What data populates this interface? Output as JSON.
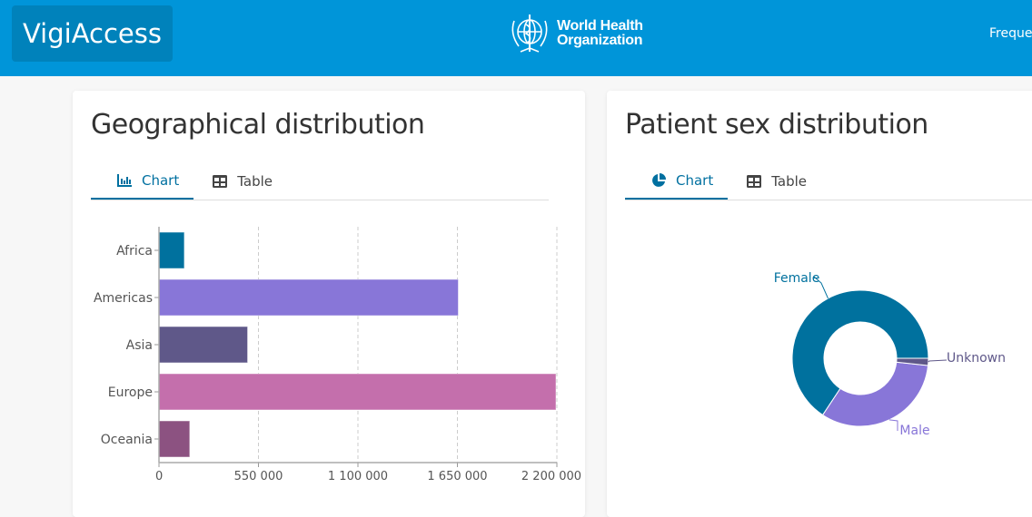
{
  "header": {
    "brand": "VigiAccess",
    "org_line1": "World Health",
    "org_line2": "Organization",
    "nav_item": "Freque"
  },
  "colors": {
    "header_bg": "#0095d9",
    "brand_bg": "#0082bb",
    "accent": "#0070a0"
  },
  "geo": {
    "title": "Geographical distribution",
    "tabs": [
      {
        "label": "Chart",
        "icon": "bar-chart-icon",
        "active": true
      },
      {
        "label": "Table",
        "icon": "table-icon",
        "active": false
      }
    ]
  },
  "sex": {
    "title": "Patient sex distribution",
    "tabs": [
      {
        "label": "Chart",
        "icon": "pie-chart-icon",
        "active": true
      },
      {
        "label": "Table",
        "icon": "table-icon",
        "active": false
      }
    ]
  },
  "chart_data": [
    {
      "type": "bar",
      "orientation": "horizontal",
      "categories": [
        "Africa",
        "Americas",
        "Asia",
        "Europe",
        "Oceania"
      ],
      "values": [
        140000,
        1655000,
        490000,
        2195000,
        170000
      ],
      "colors": [
        "#00719e",
        "#8876d8",
        "#5f5889",
        "#c46fac",
        "#8c5281"
      ],
      "xlim": [
        0,
        2200000
      ],
      "xticks": [
        "0",
        "550 000",
        "1 100 000",
        "1 650 000",
        "2 200 000"
      ],
      "xtick_values": [
        0,
        550000,
        1100000,
        1650000,
        2200000
      ],
      "grid": true
    },
    {
      "type": "pie",
      "donut": true,
      "labels": [
        "Female",
        "Male",
        "Unknown"
      ],
      "values": [
        65.7,
        32.6,
        1.7
      ],
      "colors": [
        "#00719e",
        "#8876d8",
        "#5f5889"
      ]
    }
  ]
}
